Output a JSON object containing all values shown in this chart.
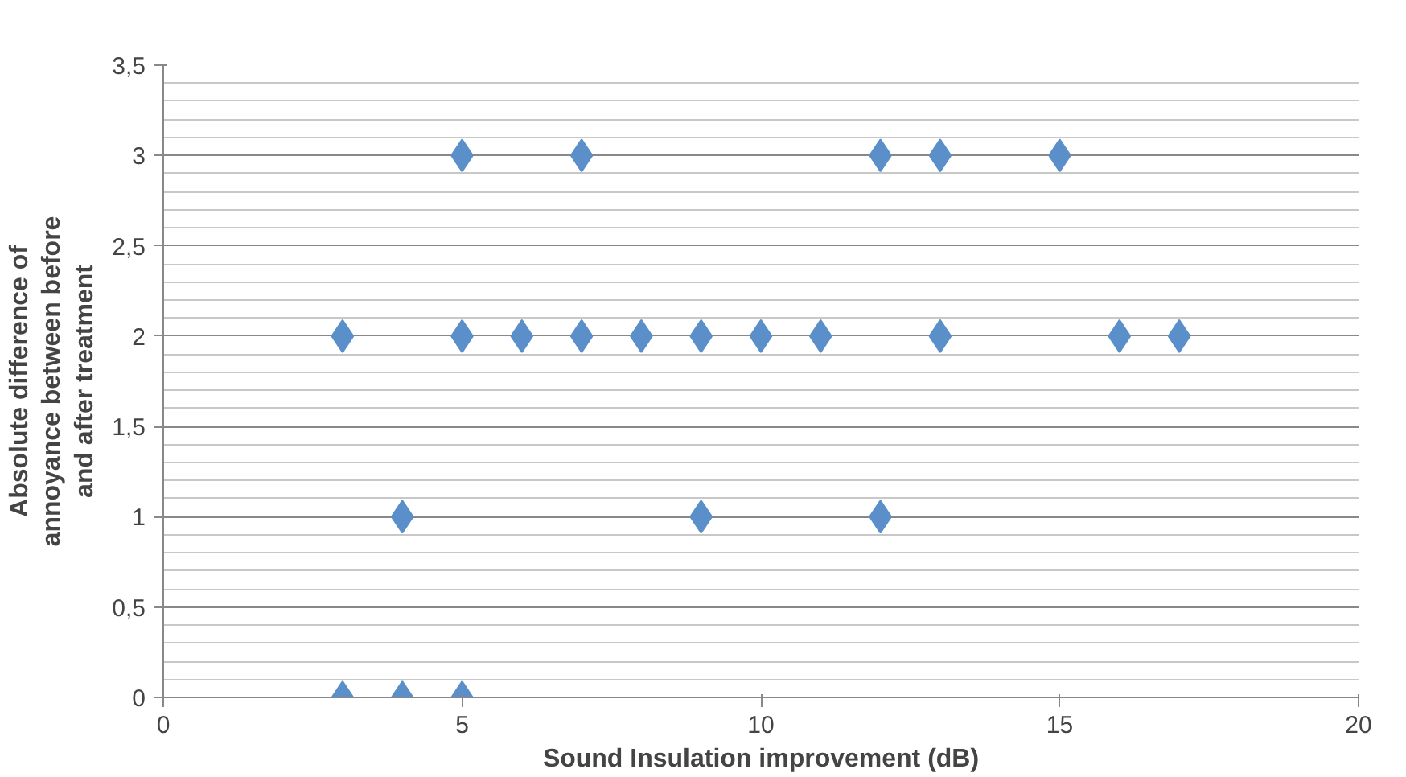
{
  "chart_data": {
    "type": "scatter",
    "xlabel": "Sound Insulation improvement (dB)",
    "ylabel": "Absolute difference of annoyance between before and after treatment",
    "x": [
      5,
      7,
      12,
      13,
      15,
      3,
      5,
      6,
      7,
      8,
      9,
      10,
      11,
      13,
      16,
      17,
      4,
      9,
      12,
      3,
      4,
      5
    ],
    "values": [
      3,
      3,
      3,
      3,
      3,
      2,
      2,
      2,
      2,
      2,
      2,
      2,
      2,
      2,
      2,
      2,
      1,
      1,
      1,
      0,
      0,
      0
    ],
    "color": "#5b8fc9",
    "marker": "diamond",
    "grid": "y",
    "legend": false,
    "xlim": [
      0,
      20
    ],
    "xticks": [
      0,
      5,
      10,
      15,
      20
    ],
    "ylim": [
      0,
      3.5
    ],
    "yticks": [
      0,
      {
        "value": 0.5,
        "label": "0,5"
      },
      1,
      {
        "value": 1.5,
        "label": "1,5"
      },
      2,
      {
        "value": 2.5,
        "label": "2,5"
      },
      3,
      {
        "value": 3.5,
        "label": "3,5"
      }
    ]
  }
}
